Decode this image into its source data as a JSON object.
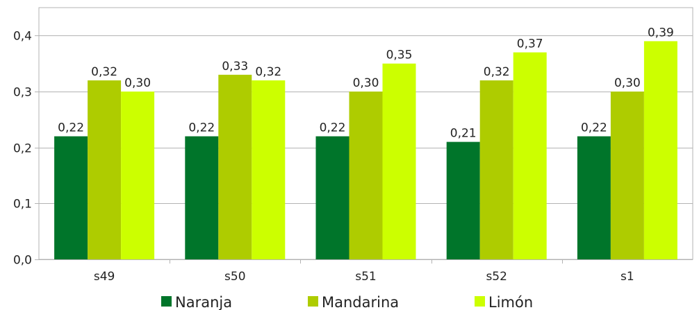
{
  "chart_data": {
    "type": "bar",
    "categories": [
      "s49",
      "s50",
      "s51",
      "s52",
      "s1"
    ],
    "series": [
      {
        "name": "Naranja",
        "color": "#00752A",
        "values": [
          0.22,
          0.22,
          0.22,
          0.21,
          0.22
        ],
        "labels": [
          "0,22",
          "0,22",
          "0,22",
          "0,21",
          "0,22"
        ]
      },
      {
        "name": "Mandarina",
        "color": "#AECC00",
        "values": [
          0.32,
          0.33,
          0.3,
          0.32,
          0.3
        ],
        "labels": [
          "0,32",
          "0,33",
          "0,30",
          "0,32",
          "0,30"
        ]
      },
      {
        "name": "Limón",
        "color": "#CCFF00",
        "values": [
          0.3,
          0.32,
          0.35,
          0.37,
          0.39
        ],
        "labels": [
          "0,30",
          "0,32",
          "0,35",
          "0,37",
          "0,39"
        ]
      }
    ],
    "ylim": [
      0,
      0.45
    ],
    "yticks": [
      0,
      0.1,
      0.2,
      0.3,
      0.4
    ],
    "ytick_labels": [
      "0,0",
      "0,1",
      "0,2",
      "0,3",
      "0,4"
    ],
    "title": "",
    "xlabel": "",
    "ylabel": "",
    "grid": true,
    "legend_position": "bottom"
  }
}
